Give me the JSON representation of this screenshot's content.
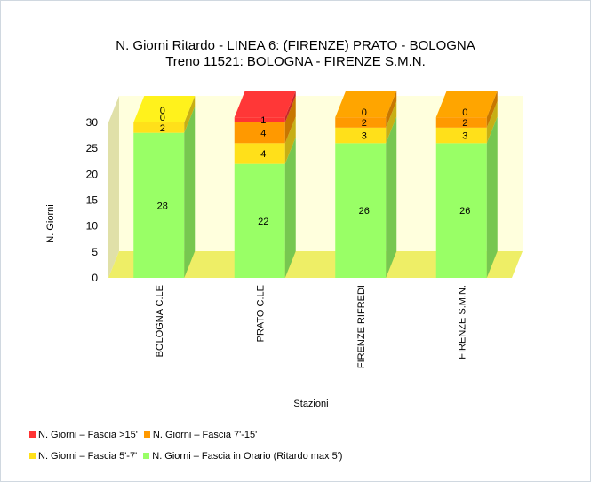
{
  "chart_data": {
    "type": "bar",
    "stacked": true,
    "three_d": true,
    "title": "N. Giorni Ritardo - LINEA 6: (FIRENZE) PRATO - BOLOGNA",
    "subtitle": "Treno 11521: BOLOGNA - FIRENZE S.M.N.",
    "xlabel": "Stazioni",
    "ylabel": "N. Giorni",
    "ylim": [
      0,
      30
    ],
    "yticks": [
      "0",
      "5",
      "10",
      "15",
      "20",
      "25",
      "30"
    ],
    "categories": [
      "BOLOGNA C.LE",
      "PRATO C.LE",
      "FIRENZE RIFREDI",
      "FIRENZE S.M.N."
    ],
    "series": [
      {
        "name": "N. Giorni – Fascia in Orario (Ritardo max 5')",
        "color": "#99ff66",
        "values": [
          28,
          22,
          26,
          26
        ]
      },
      {
        "name": "N. Giorni – Fascia 5'-7'",
        "color": "#ffe01a",
        "values": [
          2,
          4,
          3,
          3
        ]
      },
      {
        "name": "N. Giorni – Fascia 7'-15'",
        "color": "#ff9900",
        "values": [
          0,
          4,
          2,
          2
        ]
      },
      {
        "name": "N. Giorni – Fascia >15'",
        "color": "#ff3333",
        "values": [
          0,
          1,
          0,
          0
        ]
      }
    ],
    "legend_position": "bottom-left",
    "grid": false
  }
}
